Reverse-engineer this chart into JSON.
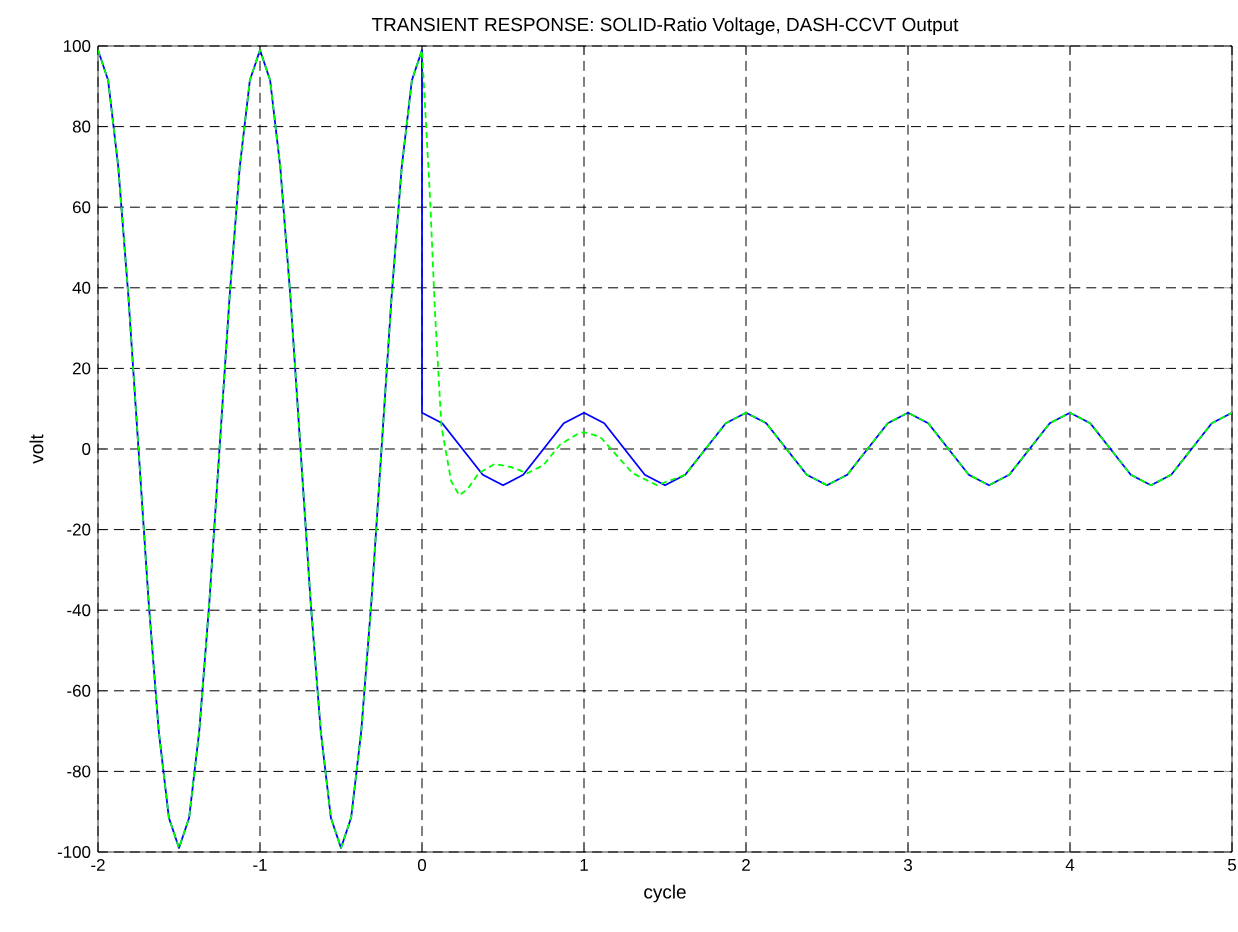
{
  "chart_data": {
    "type": "line",
    "title": "TRANSIENT RESPONSE: SOLID-Ratio Voltage, DASH-CCVT Output",
    "xlabel": "cycle",
    "ylabel": "volt",
    "xlim": [
      -2,
      5
    ],
    "ylim": [
      -100,
      100
    ],
    "xticks": [
      -2,
      -1,
      0,
      1,
      2,
      3,
      4,
      5
    ],
    "yticks": [
      -100,
      -80,
      -60,
      -40,
      -20,
      0,
      20,
      40,
      60,
      80,
      100
    ],
    "grid": true,
    "series": [
      {
        "color": "#0000ff",
        "line_style": "solid",
        "x": [
          -2,
          -1.9375,
          -1.875,
          -1.8125,
          -1.75,
          -1.6875,
          -1.625,
          -1.5625,
          -1.5,
          -1.4375,
          -1.375,
          -1.3125,
          -1.25,
          -1.1875,
          -1.125,
          -1.0625,
          -1,
          -0.9375,
          -0.875,
          -0.8125,
          -0.75,
          -0.6875,
          -0.625,
          -0.5625,
          -0.5,
          -0.4375,
          -0.375,
          -0.3125,
          -0.25,
          -0.1875,
          -0.125,
          -0.0625,
          0,
          0,
          0.125,
          0.25,
          0.375,
          0.5,
          0.625,
          0.75,
          0.875,
          1,
          1.125,
          1.25,
          1.375,
          1.5,
          1.625,
          1.75,
          1.875,
          2,
          2.125,
          2.25,
          2.375,
          2.5,
          2.625,
          2.75,
          2.875,
          3,
          3.125,
          3.25,
          3.375,
          3.5,
          3.625,
          3.75,
          3.875,
          4,
          4.125,
          4.25,
          4.375,
          4.5,
          4.625,
          4.75,
          4.875,
          5
        ],
        "values": [
          99,
          91.5,
          70,
          37.9,
          0,
          -37.9,
          -70,
          -91.5,
          -99,
          -91.5,
          -70,
          -37.9,
          0,
          37.9,
          70,
          91.5,
          99,
          91.5,
          70,
          37.9,
          0,
          -37.9,
          -70,
          -91.5,
          -99,
          -91.5,
          -70,
          -37.9,
          0,
          37.9,
          70,
          91.5,
          99,
          9,
          6.4,
          0,
          -6.4,
          -9,
          -6.4,
          0,
          6.4,
          9,
          6.4,
          0,
          -6.4,
          -9,
          -6.4,
          0,
          6.4,
          9,
          6.4,
          0,
          -6.4,
          -9,
          -6.4,
          0,
          6.4,
          9,
          6.4,
          0,
          -6.4,
          -9,
          -6.4,
          0,
          6.4,
          9,
          6.4,
          0,
          -6.4,
          -9,
          -6.4,
          0,
          6.4,
          9
        ]
      },
      {
        "color": "#00ff00",
        "line_style": "dashed",
        "x": [
          -2,
          -1.9375,
          -1.875,
          -1.8125,
          -1.75,
          -1.6875,
          -1.625,
          -1.5625,
          -1.5,
          -1.4375,
          -1.375,
          -1.3125,
          -1.25,
          -1.1875,
          -1.125,
          -1.0625,
          -1,
          -0.9375,
          -0.875,
          -0.8125,
          -0.75,
          -0.6875,
          -0.625,
          -0.5625,
          -0.5,
          -0.4375,
          -0.375,
          -0.3125,
          -0.25,
          -0.1875,
          -0.125,
          -0.0625,
          0,
          0.05,
          0.08,
          0.12,
          0.18,
          0.23,
          0.28,
          0.35,
          0.45,
          0.55,
          0.65,
          0.75,
          0.85,
          0.95,
          1,
          1.1,
          1.2,
          1.3,
          1.45,
          1.625,
          1.75,
          1.875,
          2,
          2.125,
          2.25,
          2.375,
          2.5,
          2.625,
          2.75,
          2.875,
          3,
          3.125,
          3.25,
          3.375,
          3.5,
          3.625,
          3.75,
          3.875,
          4,
          4.125,
          4.25,
          4.375,
          4.5,
          4.625,
          4.75,
          4.875,
          5
        ],
        "values": [
          99,
          91.5,
          70,
          37.9,
          0,
          -37.9,
          -70,
          -91.5,
          -99,
          -91.5,
          -70,
          -37.9,
          0,
          37.9,
          70,
          91.5,
          99,
          91.5,
          70,
          37.9,
          0,
          -37.9,
          -70,
          -91.5,
          -99,
          -91.5,
          -70,
          -37.9,
          0,
          37.9,
          70,
          91.5,
          99,
          62,
          34,
          5.5,
          -8,
          -11.5,
          -10,
          -6,
          -3.7,
          -4.5,
          -6,
          -4,
          1,
          3.5,
          4.2,
          3,
          -1.5,
          -6,
          -9,
          -6.4,
          0,
          6.4,
          9,
          6.4,
          0,
          -6.4,
          -9,
          -6.4,
          0,
          6.4,
          9,
          6.4,
          0,
          -6.4,
          -9,
          -6.4,
          0,
          6.4,
          9,
          6.4,
          0,
          -6.4,
          -9,
          -6.4,
          0,
          6.4,
          9
        ]
      }
    ]
  }
}
